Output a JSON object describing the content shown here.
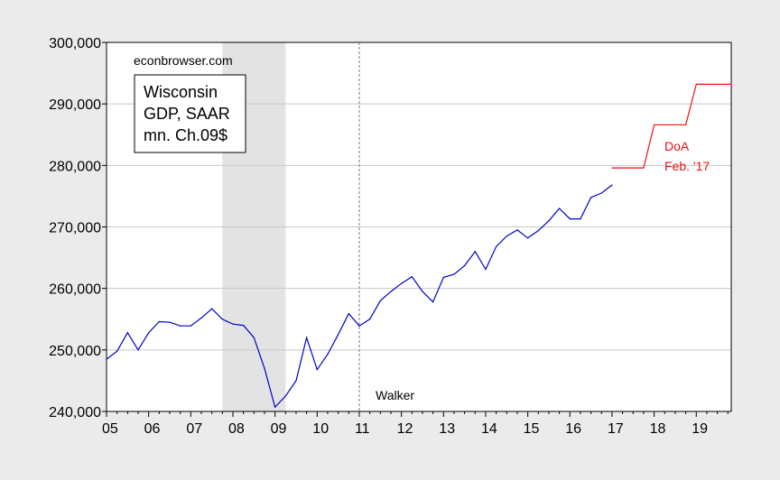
{
  "chart_data": {
    "type": "line",
    "title": "",
    "xlabel": "",
    "ylabel": "",
    "ylim": [
      240000,
      300000
    ],
    "xlim": [
      2005.0,
      2019.83
    ],
    "grid": "horizontal",
    "y_ticks": [
      240000,
      250000,
      260000,
      270000,
      280000,
      290000,
      300000
    ],
    "y_tick_labels": [
      "240,000",
      "250,000",
      "260,000",
      "270,000",
      "280,000",
      "290,000",
      "300,000"
    ],
    "x_ticks": [
      2005,
      2006,
      2007,
      2008,
      2009,
      2010,
      2011,
      2012,
      2013,
      2014,
      2015,
      2016,
      2017,
      2018,
      2019
    ],
    "x_tick_labels": [
      "05",
      "06",
      "07",
      "08",
      "09",
      "10",
      "11",
      "12",
      "13",
      "14",
      "15",
      "16",
      "17",
      "18",
      "19"
    ],
    "source_note": "econbrowser.com",
    "legend_box": [
      "Wisconsin",
      "GDP, SAAR",
      "mn. Ch.09$"
    ],
    "recession": {
      "start": 2007.75,
      "end": 2009.25,
      "color": "#e3e3e3"
    },
    "vline": {
      "x": 2011.0,
      "label": "Walker"
    },
    "series": [
      {
        "name": "",
        "color": "#0000cc",
        "x": [
          2005.0,
          2005.25,
          2005.5,
          2005.75,
          2006.0,
          2006.25,
          2006.5,
          2006.75,
          2007.0,
          2007.25,
          2007.5,
          2007.75,
          2008.0,
          2008.25,
          2008.5,
          2008.75,
          2009.0,
          2009.25,
          2009.5,
          2009.75,
          2010.0,
          2010.25,
          2010.5,
          2010.75,
          2011.0,
          2011.25,
          2011.5,
          2011.75,
          2012.0,
          2012.25,
          2012.5,
          2012.75,
          2013.0,
          2013.25,
          2013.5,
          2013.75,
          2014.0,
          2014.25,
          2014.5,
          2014.75,
          2015.0,
          2015.25,
          2015.5,
          2015.75,
          2016.0,
          2016.25,
          2016.5,
          2016.75,
          2017.0
        ],
        "values": [
          248500,
          249800,
          252800,
          250000,
          252800,
          254600,
          254500,
          253900,
          253900,
          255200,
          256700,
          255000,
          254200,
          254000,
          252000,
          247000,
          240700,
          242500,
          245000,
          252000,
          246800,
          249300,
          252500,
          255900,
          253900,
          255000,
          258000,
          259500,
          260800,
          261900,
          259500,
          257800,
          261800,
          262300,
          263700,
          266000,
          263100,
          266800,
          268500,
          269500,
          268200,
          269400,
          271000,
          273000,
          271300,
          271300,
          274800,
          275500,
          276800
        ]
      },
      {
        "name": "DoA Feb. '17",
        "color": "#ee1111",
        "x": [
          2017.0,
          2017.75,
          2018.0,
          2018.75,
          2019.0,
          2019.83
        ],
        "values": [
          279600,
          279600,
          286600,
          286600,
          293200,
          293200
        ],
        "step": true,
        "label_lines": [
          "DoA",
          "Feb. '17"
        ]
      }
    ]
  }
}
